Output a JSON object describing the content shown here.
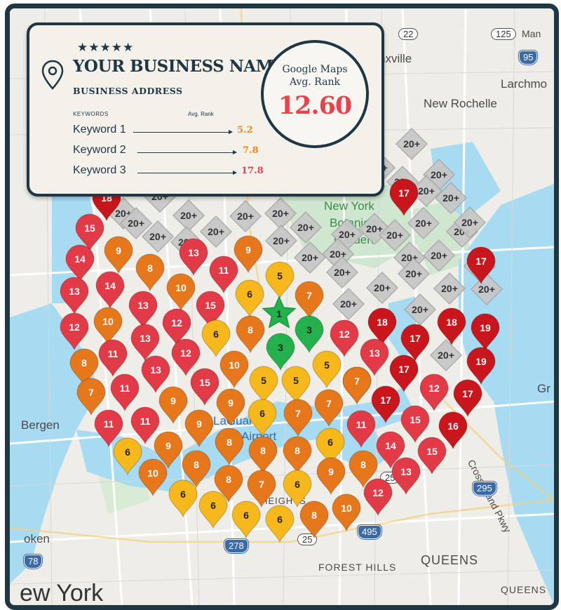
{
  "card": {
    "stars": "★★★★★",
    "business_name": "YOUR BUSINESS NAME",
    "business_address": "BUSINESS ADDRESS",
    "keywords_header": "KEYWORDS",
    "rank_header": "Avg. Rank",
    "keywords": [
      {
        "label": "Keyword 1",
        "rank": "5.2",
        "color": "#ef8a1c"
      },
      {
        "label": "Keyword 2",
        "rank": "7.8",
        "color": "#ef8a1c"
      },
      {
        "label": "Keyword 3",
        "rank": "17.8",
        "color": "#e8424d"
      }
    ],
    "avg_title_line1": "Google Maps",
    "avg_title_line2": "Avg. Rank",
    "avg_value": "12.60"
  },
  "colors": {
    "red_dark": "#c8161c",
    "red": "#e23a47",
    "orange": "#e6781b",
    "yellow": "#f6b81a",
    "green": "#22b14c",
    "grey": "#c7c7c7",
    "frame": "#1f3644",
    "water": "#a6dbf2",
    "park": "#cfe7cf"
  },
  "map_labels": {
    "city_top": "nxville",
    "larchmont": "Larchmo",
    "new_rochelle": "New Rochelle",
    "botanical_1": "New York",
    "botanical_2": "Botanical",
    "botanical_3": "Garden",
    "bergen": "Bergen",
    "laguardia_1": "LaGuardia",
    "laguardia_2": "Airport",
    "cross_island": "Cross Island Pkwy",
    "forest_hills": "FOREST HILLS",
    "queens": "QUEENS",
    "queens2": "QUEENS",
    "oken": "oken",
    "new_york": "ew York",
    "gr": "Gr",
    "heights": "HEIGHTS",
    "r22": "22",
    "r125": "125",
    "r95": "95",
    "r295": "295",
    "r495": "495",
    "r278": "278",
    "r25a": "25",
    "r25b": "25",
    "r78": "78",
    "rman": "Man"
  },
  "pins": [
    {
      "rank": "18",
      "color": "red_dark"
    },
    {
      "rank": "15",
      "color": "red"
    },
    {
      "rank": "9",
      "color": "orange"
    },
    {
      "rank": "13",
      "color": "red"
    },
    {
      "rank": "9",
      "color": "orange"
    },
    {
      "rank": "14",
      "color": "red"
    },
    {
      "rank": "8",
      "color": "orange"
    },
    {
      "rank": "11",
      "color": "red"
    },
    {
      "rank": "5",
      "color": "yellow"
    },
    {
      "rank": "13",
      "color": "red"
    },
    {
      "rank": "14",
      "color": "red"
    },
    {
      "rank": "10",
      "color": "orange"
    },
    {
      "rank": "6",
      "color": "yellow"
    },
    {
      "rank": "7",
      "color": "orange"
    },
    {
      "rank": "13",
      "color": "red"
    },
    {
      "rank": "15",
      "color": "red"
    },
    {
      "rank": "1",
      "color": "green"
    },
    {
      "rank": "12",
      "color": "red"
    },
    {
      "rank": "10",
      "color": "orange"
    },
    {
      "rank": "12",
      "color": "red"
    },
    {
      "rank": "6",
      "color": "yellow"
    },
    {
      "rank": "8",
      "color": "orange"
    },
    {
      "rank": "3",
      "color": "green"
    },
    {
      "rank": "13",
      "color": "red"
    },
    {
      "rank": "3",
      "color": "green"
    },
    {
      "rank": "12",
      "color": "red"
    },
    {
      "rank": "8",
      "color": "orange"
    },
    {
      "rank": "11",
      "color": "red"
    },
    {
      "rank": "12",
      "color": "red"
    },
    {
      "rank": "10",
      "color": "orange"
    },
    {
      "rank": "5",
      "color": "yellow"
    },
    {
      "rank": "13",
      "color": "red"
    },
    {
      "rank": "15",
      "color": "red"
    },
    {
      "rank": "5",
      "color": "yellow"
    },
    {
      "rank": "5",
      "color": "yellow"
    },
    {
      "rank": "7",
      "color": "orange"
    },
    {
      "rank": "11",
      "color": "red"
    },
    {
      "rank": "9",
      "color": "orange"
    },
    {
      "rank": "9",
      "color": "orange"
    },
    {
      "rank": "10",
      "color": "orange"
    },
    {
      "rank": "6",
      "color": "yellow"
    },
    {
      "rank": "7",
      "color": "orange"
    },
    {
      "rank": "7",
      "color": "orange"
    },
    {
      "rank": "11",
      "color": "red"
    },
    {
      "rank": "11",
      "color": "red"
    },
    {
      "rank": "9",
      "color": "orange"
    },
    {
      "rank": "11",
      "color": "red"
    },
    {
      "rank": "6",
      "color": "yellow"
    },
    {
      "rank": "9",
      "color": "orange"
    },
    {
      "rank": "8",
      "color": "orange"
    },
    {
      "rank": "8",
      "color": "orange"
    },
    {
      "rank": "8",
      "color": "orange"
    },
    {
      "rank": "6",
      "color": "yellow"
    },
    {
      "rank": "14",
      "color": "red"
    },
    {
      "rank": "10",
      "color": "orange"
    },
    {
      "rank": "8",
      "color": "orange"
    },
    {
      "rank": "8",
      "color": "orange"
    },
    {
      "rank": "7",
      "color": "orange"
    },
    {
      "rank": "6",
      "color": "yellow"
    },
    {
      "rank": "9",
      "color": "orange"
    },
    {
      "rank": "8",
      "color": "orange"
    },
    {
      "rank": "13",
      "color": "red"
    },
    {
      "rank": "6",
      "color": "yellow"
    },
    {
      "rank": "6",
      "color": "yellow"
    },
    {
      "rank": "6",
      "color": "yellow"
    },
    {
      "rank": "6",
      "color": "yellow"
    },
    {
      "rank": "8",
      "color": "orange"
    },
    {
      "rank": "10",
      "color": "orange"
    },
    {
      "rank": "12",
      "color": "red"
    },
    {
      "rank": "17",
      "color": "red_dark"
    },
    {
      "rank": "17",
      "color": "red_dark"
    },
    {
      "rank": "18",
      "color": "red_dark"
    },
    {
      "rank": "17",
      "color": "red_dark"
    },
    {
      "rank": "18",
      "color": "red_dark"
    },
    {
      "rank": "19",
      "color": "red_dark"
    },
    {
      "rank": "13",
      "color": "red"
    },
    {
      "rank": "17",
      "color": "red_dark"
    },
    {
      "rank": "19",
      "color": "red_dark"
    },
    {
      "rank": "7",
      "color": "orange"
    },
    {
      "rank": "12",
      "color": "red"
    },
    {
      "rank": "17",
      "color": "red_dark"
    },
    {
      "rank": "17",
      "color": "red_dark"
    },
    {
      "rank": "15",
      "color": "red"
    },
    {
      "rank": "16",
      "color": "red_dark"
    },
    {
      "rank": "15",
      "color": "red"
    }
  ],
  "grey_pin_label": "20+"
}
